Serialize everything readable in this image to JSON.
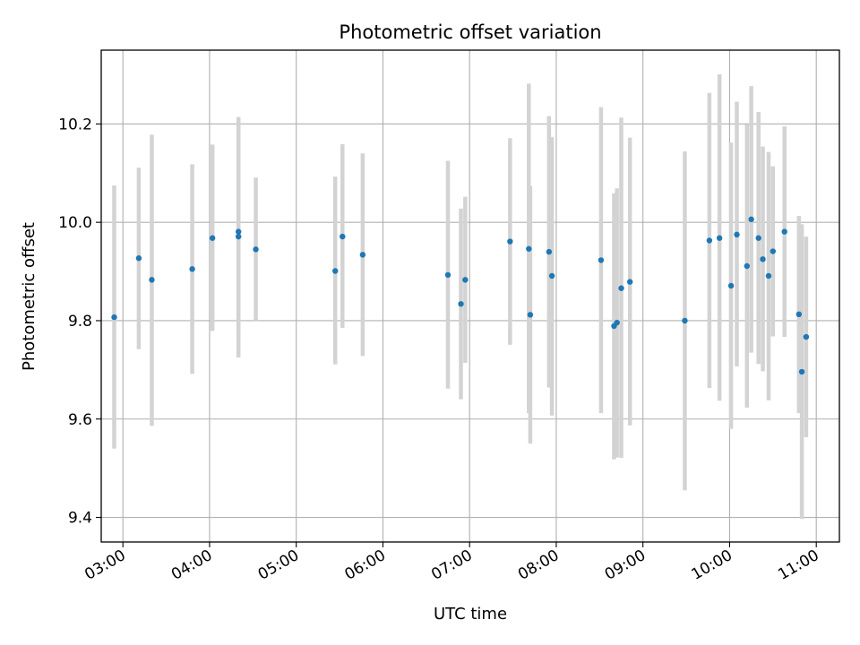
{
  "chart_data": {
    "type": "scatter",
    "title": "Photometric offset variation",
    "xlabel": "UTC time",
    "ylabel": "Photometric offset",
    "grid": true,
    "xlim": [
      "02:45",
      "11:16"
    ],
    "ylim": [
      9.35,
      10.35
    ],
    "x_ticks": [
      "03:00",
      "04:00",
      "05:00",
      "06:00",
      "07:00",
      "08:00",
      "09:00",
      "10:00",
      "11:00"
    ],
    "y_ticks": [
      "9.4",
      "9.6",
      "9.8",
      "10.0",
      "10.2"
    ],
    "colors": {
      "point": "#1f77b4",
      "errorbar": "#d3d3d3",
      "grid": "#b0b0b0"
    },
    "series": [
      {
        "points": [
          {
            "x": "02:54",
            "y": 9.807,
            "lo": 9.54,
            "hi": 10.075
          },
          {
            "x": "03:11",
            "y": 9.927,
            "lo": 9.742,
            "hi": 10.111
          },
          {
            "x": "03:20",
            "y": 9.883,
            "lo": 9.586,
            "hi": 10.178
          },
          {
            "x": "03:48",
            "y": 9.905,
            "lo": 9.692,
            "hi": 10.118
          },
          {
            "x": "04:02",
            "y": 9.968,
            "lo": 9.779,
            "hi": 10.158
          },
          {
            "x": "04:20",
            "y": 9.971,
            "lo": 9.725,
            "hi": 10.214
          },
          {
            "x": "04:20",
            "y": 9.981,
            "lo": 9.758,
            "hi": 10.21
          },
          {
            "x": "04:32",
            "y": 9.945,
            "lo": 9.8,
            "hi": 10.091
          },
          {
            "x": "05:27",
            "y": 9.901,
            "lo": 9.711,
            "hi": 10.093
          },
          {
            "x": "05:32",
            "y": 9.971,
            "lo": 9.785,
            "hi": 10.159
          },
          {
            "x": "05:46",
            "y": 9.934,
            "lo": 9.728,
            "hi": 10.14
          },
          {
            "x": "06:45",
            "y": 9.893,
            "lo": 9.662,
            "hi": 10.125
          },
          {
            "x": "06:54",
            "y": 9.834,
            "lo": 9.64,
            "hi": 10.028
          },
          {
            "x": "06:57",
            "y": 9.883,
            "lo": 9.714,
            "hi": 10.052
          },
          {
            "x": "07:28",
            "y": 9.961,
            "lo": 9.751,
            "hi": 10.171
          },
          {
            "x": "07:41",
            "y": 9.946,
            "lo": 9.612,
            "hi": 10.282
          },
          {
            "x": "07:42",
            "y": 9.812,
            "lo": 9.55,
            "hi": 10.074
          },
          {
            "x": "07:55",
            "y": 9.94,
            "lo": 9.664,
            "hi": 10.216
          },
          {
            "x": "07:57",
            "y": 9.891,
            "lo": 9.607,
            "hi": 10.173
          },
          {
            "x": "08:31",
            "y": 9.923,
            "lo": 9.612,
            "hi": 10.234
          },
          {
            "x": "08:40",
            "y": 9.789,
            "lo": 9.518,
            "hi": 10.059
          },
          {
            "x": "08:42",
            "y": 9.796,
            "lo": 9.522,
            "hi": 10.069
          },
          {
            "x": "08:45",
            "y": 9.866,
            "lo": 9.521,
            "hi": 10.213
          },
          {
            "x": "08:51",
            "y": 9.879,
            "lo": 9.587,
            "hi": 10.172
          },
          {
            "x": "09:29",
            "y": 9.8,
            "lo": 9.455,
            "hi": 10.144
          },
          {
            "x": "09:46",
            "y": 9.963,
            "lo": 9.663,
            "hi": 10.263
          },
          {
            "x": "09:53",
            "y": 9.968,
            "lo": 9.637,
            "hi": 10.301
          },
          {
            "x": "10:01",
            "y": 9.871,
            "lo": 9.58,
            "hi": 10.162
          },
          {
            "x": "10:05",
            "y": 9.975,
            "lo": 9.707,
            "hi": 10.245
          },
          {
            "x": "10:12",
            "y": 9.911,
            "lo": 9.623,
            "hi": 10.199
          },
          {
            "x": "10:15",
            "y": 10.006,
            "lo": 9.735,
            "hi": 10.277
          },
          {
            "x": "10:20",
            "y": 9.968,
            "lo": 9.712,
            "hi": 10.224
          },
          {
            "x": "10:23",
            "y": 9.925,
            "lo": 9.697,
            "hi": 10.154
          },
          {
            "x": "10:27",
            "y": 9.891,
            "lo": 9.638,
            "hi": 10.143
          },
          {
            "x": "10:30",
            "y": 9.941,
            "lo": 9.768,
            "hi": 10.114
          },
          {
            "x": "10:38",
            "y": 9.981,
            "lo": 9.767,
            "hi": 10.195
          },
          {
            "x": "10:48",
            "y": 9.813,
            "lo": 9.612,
            "hi": 10.013
          },
          {
            "x": "10:50",
            "y": 9.696,
            "lo": 9.397,
            "hi": 9.996
          },
          {
            "x": "10:53",
            "y": 9.767,
            "lo": 9.563,
            "hi": 9.971
          }
        ]
      }
    ]
  }
}
